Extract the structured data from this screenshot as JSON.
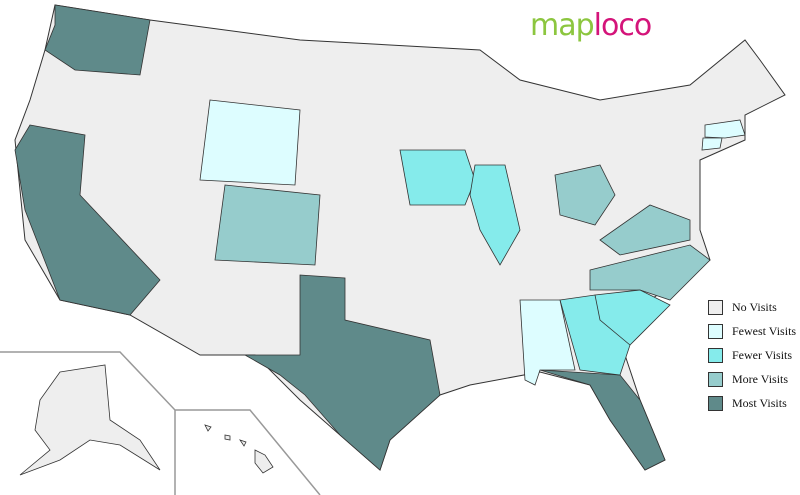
{
  "logo": {
    "part1": "map",
    "part2": "loco"
  },
  "colors": {
    "none": "#eeeeee",
    "fewest": "#ddfdff",
    "fewer": "#85ebeb",
    "more": "#96cccc",
    "most": "#5f8a8a",
    "border": "#333333"
  },
  "legend": [
    {
      "label": "No Visits",
      "level": "none"
    },
    {
      "label": "Fewest Visits",
      "level": "fewest"
    },
    {
      "label": "Fewer Visits",
      "level": "fewer"
    },
    {
      "label": "More Visits",
      "level": "more"
    },
    {
      "label": "Most Visits",
      "level": "most"
    }
  ],
  "states": {
    "Washington": "most",
    "California": "most",
    "Texas": "most",
    "Florida": "most",
    "Colorado": "more",
    "Ohio": "more",
    "Virginia": "more",
    "North Carolina": "more",
    "Iowa": "fewer",
    "Illinois": "fewer",
    "Georgia": "fewer",
    "South Carolina": "fewer",
    "Wyoming": "fewest",
    "Alabama": "fewest",
    "Massachusetts": "fewest",
    "Connecticut": "fewest"
  }
}
